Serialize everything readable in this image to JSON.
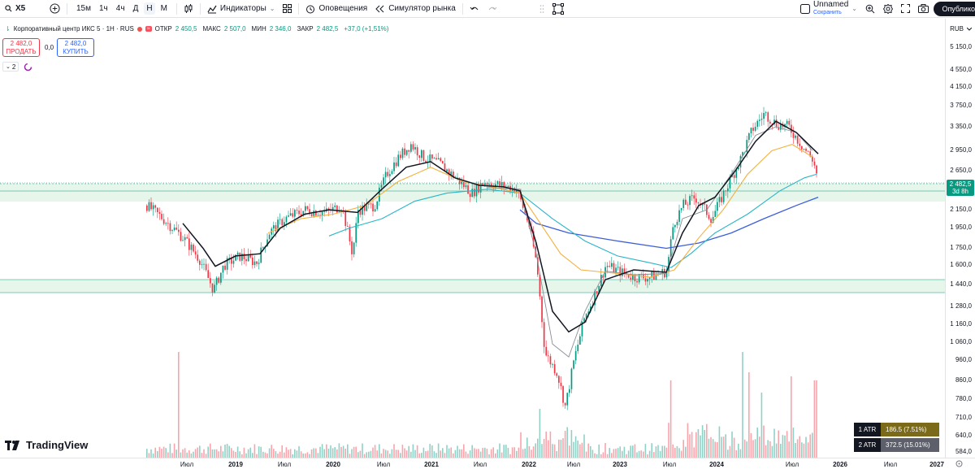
{
  "toolbar": {
    "symbol": "X5",
    "intervals": [
      {
        "label": "15м",
        "active": false
      },
      {
        "label": "1ч",
        "active": false
      },
      {
        "label": "4ч",
        "active": false
      },
      {
        "label": "Д",
        "active": false
      },
      {
        "label": "Н",
        "active": true
      },
      {
        "label": "М",
        "active": false
      }
    ],
    "indicators_label": "Индикаторы",
    "alerts_label": "Оповещения",
    "replay_label": "Симулятор рынка",
    "layout_name": "Unnamed",
    "layout_status": "Сохранить",
    "publish_label": "Опублико"
  },
  "legend": {
    "symbol_name": "Корпоративный центр ИКС 5 · 1Н · RUS",
    "open_key": "ОТКР",
    "open_val": "2 450,5",
    "high_key": "МАКС",
    "high_val": "2 507,0",
    "low_key": "МИН",
    "low_val": "2 346,0",
    "close_key": "ЗАКР",
    "close_val": "2 482,5",
    "change": "+37,0 (+1,51%)"
  },
  "trade": {
    "sell_price": "2 482,0",
    "sell_label": "ПРОДАТЬ",
    "spread": "0,0",
    "buy_price": "2 482,0",
    "buy_label": "КУПИТЬ"
  },
  "indicators_count": "2",
  "logo_text": "TradingView",
  "price_axis": {
    "currency": "RUB",
    "labels": [
      "5 150,0",
      "4 850,0",
      "4 550,0",
      "4 150,0",
      "3 750,0",
      "3 350,0",
      "2 950,0",
      "2 650,0",
      "2 150,0",
      "1 950,0",
      "1 750,0",
      "1 600,0",
      "1 440,0",
      "1 280,0",
      "1 160,0",
      "1 060,0",
      "960,0",
      "860,0",
      "780,0",
      "710,0",
      "640,0",
      "584,0"
    ],
    "current_price": "2 482,5",
    "countdown": "3d 8h"
  },
  "time_axis": {
    "labels": [
      {
        "text": "Июл",
        "year": false
      },
      {
        "text": "2019",
        "year": true
      },
      {
        "text": "Июл",
        "year": false
      },
      {
        "text": "2020",
        "year": true
      },
      {
        "text": "Июл",
        "year": false
      },
      {
        "text": "2021",
        "year": true
      },
      {
        "text": "Июл",
        "year": false
      },
      {
        "text": "2022",
        "year": true
      },
      {
        "text": "Июл",
        "year": false
      },
      {
        "text": "2023",
        "year": true
      },
      {
        "text": "Июл",
        "year": false
      },
      {
        "text": "2024",
        "year": true
      },
      {
        "text": "Июл",
        "year": false
      },
      {
        "text": "2026",
        "year": true
      },
      {
        "text": "Июл",
        "year": false
      },
      {
        "text": "2027",
        "year": true
      }
    ]
  },
  "atr": [
    {
      "key": "1 ATR",
      "value": "186.5 (7.51%)"
    },
    {
      "key": "2 ATR",
      "value": "372.5 (15.01%)"
    }
  ],
  "colors": {
    "up": "#089981",
    "down": "#f23645",
    "ma_black": "#131722",
    "ma_gray": "#8a8d96",
    "ma_orange": "#f5b041",
    "ma_cyan": "#29b6c8",
    "ma_blue": "#3d5fd9",
    "zone": "#b9e6c4"
  },
  "chart_data": {
    "type": "candlestick",
    "x": [
      "2018-04",
      "2018-07",
      "2018-10",
      "2019-01",
      "2019-04",
      "2019-07",
      "2019-10",
      "2020-01",
      "2020-03",
      "2020-04",
      "2020-07",
      "2020-10",
      "2021-01",
      "2021-04",
      "2021-07",
      "2021-10",
      "2022-01",
      "2022-03",
      "2022-05",
      "2022-07",
      "2022-10",
      "2023-01",
      "2023-04",
      "2023-07",
      "2023-10",
      "2024-01",
      "2024-03",
      "2024-05",
      "2024-07",
      "2024-09",
      "2024-10"
    ],
    "close": [
      2200,
      1900,
      1630,
      1440,
      1690,
      2000,
      2080,
      2180,
      1900,
      2250,
      2550,
      2980,
      2820,
      2400,
      2550,
      2530,
      2400,
      1500,
      850,
      1190,
      1530,
      1530,
      1500,
      2180,
      2200,
      2380,
      3250,
      3700,
      3400,
      2800,
      2482.5
    ],
    "volume_peaks": [
      {
        "x": "2018-10",
        "level": "high"
      },
      {
        "x": "2024-03",
        "level": "high"
      },
      {
        "x": "2024-10",
        "level": "high"
      }
    ],
    "moving_averages": [
      "black",
      "gray",
      "orange",
      "cyan",
      "blue"
    ],
    "support_zones": [
      [
        2400,
        2480
      ],
      [
        1440,
        1500
      ]
    ],
    "y_scale": "log",
    "ylim": [
      584,
      5150
    ]
  }
}
